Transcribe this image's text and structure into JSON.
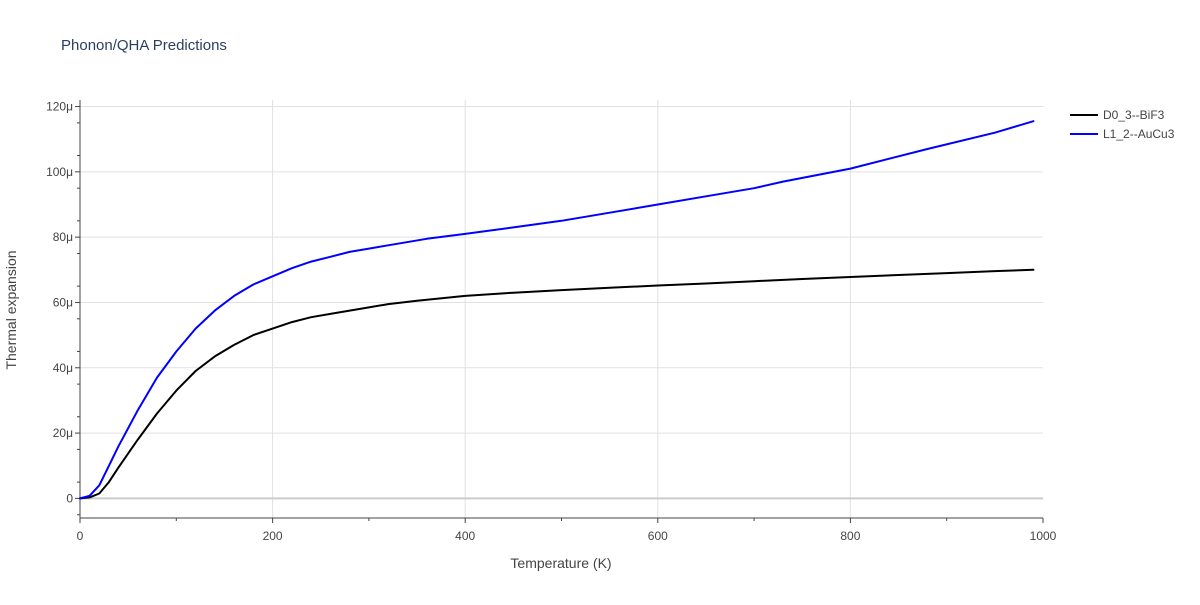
{
  "chart_data": {
    "type": "line",
    "title": "Phonon/QHA Predictions",
    "xlabel": "Temperature (K)",
    "ylabel": "Thermal expansion",
    "xlim": [
      0,
      1000
    ],
    "ylim": [
      -6,
      122
    ],
    "x_ticks": [
      0,
      200,
      400,
      600,
      800,
      1000
    ],
    "x_tick_labels": [
      "0",
      "200",
      "400",
      "600",
      "800",
      "1000"
    ],
    "y_ticks": [
      0,
      20,
      40,
      60,
      80,
      100,
      120
    ],
    "y_tick_labels": [
      "0",
      "20μ",
      "40μ",
      "60μ",
      "80μ",
      "100μ",
      "120μ"
    ],
    "y_unit": "μ (×1e-6)",
    "grid": true,
    "legend_position": "top-right, outside plot",
    "series": [
      {
        "name": "D0_3--BiF3",
        "color": "#000000",
        "x": [
          0,
          10,
          20,
          30,
          40,
          60,
          80,
          100,
          120,
          140,
          160,
          180,
          200,
          220,
          240,
          260,
          280,
          300,
          320,
          350,
          400,
          450,
          500,
          550,
          600,
          650,
          700,
          750,
          800,
          850,
          900,
          950,
          990
        ],
        "y": [
          0,
          0.3,
          1.5,
          5,
          9.5,
          18,
          26,
          33,
          39,
          43.5,
          47,
          50,
          52,
          54,
          55.5,
          56.5,
          57.5,
          58.5,
          59.5,
          60.5,
          62,
          63,
          63.8,
          64.5,
          65.2,
          65.8,
          66.5,
          67.2,
          67.8,
          68.4,
          69,
          69.6,
          70
        ]
      },
      {
        "name": "L1_2--AuCu3",
        "color": "#0000ff",
        "x": [
          0,
          10,
          20,
          30,
          40,
          60,
          80,
          100,
          120,
          140,
          160,
          180,
          200,
          220,
          240,
          260,
          280,
          300,
          320,
          360,
          400,
          450,
          500,
          550,
          600,
          650,
          700,
          730,
          800,
          880,
          950,
          990
        ],
        "y": [
          0,
          0.8,
          4,
          10,
          16,
          27,
          37,
          45,
          52,
          57.5,
          62,
          65.5,
          68,
          70.5,
          72.5,
          74,
          75.5,
          76.5,
          77.5,
          79.5,
          81,
          83,
          85,
          87.5,
          90,
          92.5,
          95,
          97,
          101,
          107,
          112,
          115.5
        ]
      }
    ]
  }
}
